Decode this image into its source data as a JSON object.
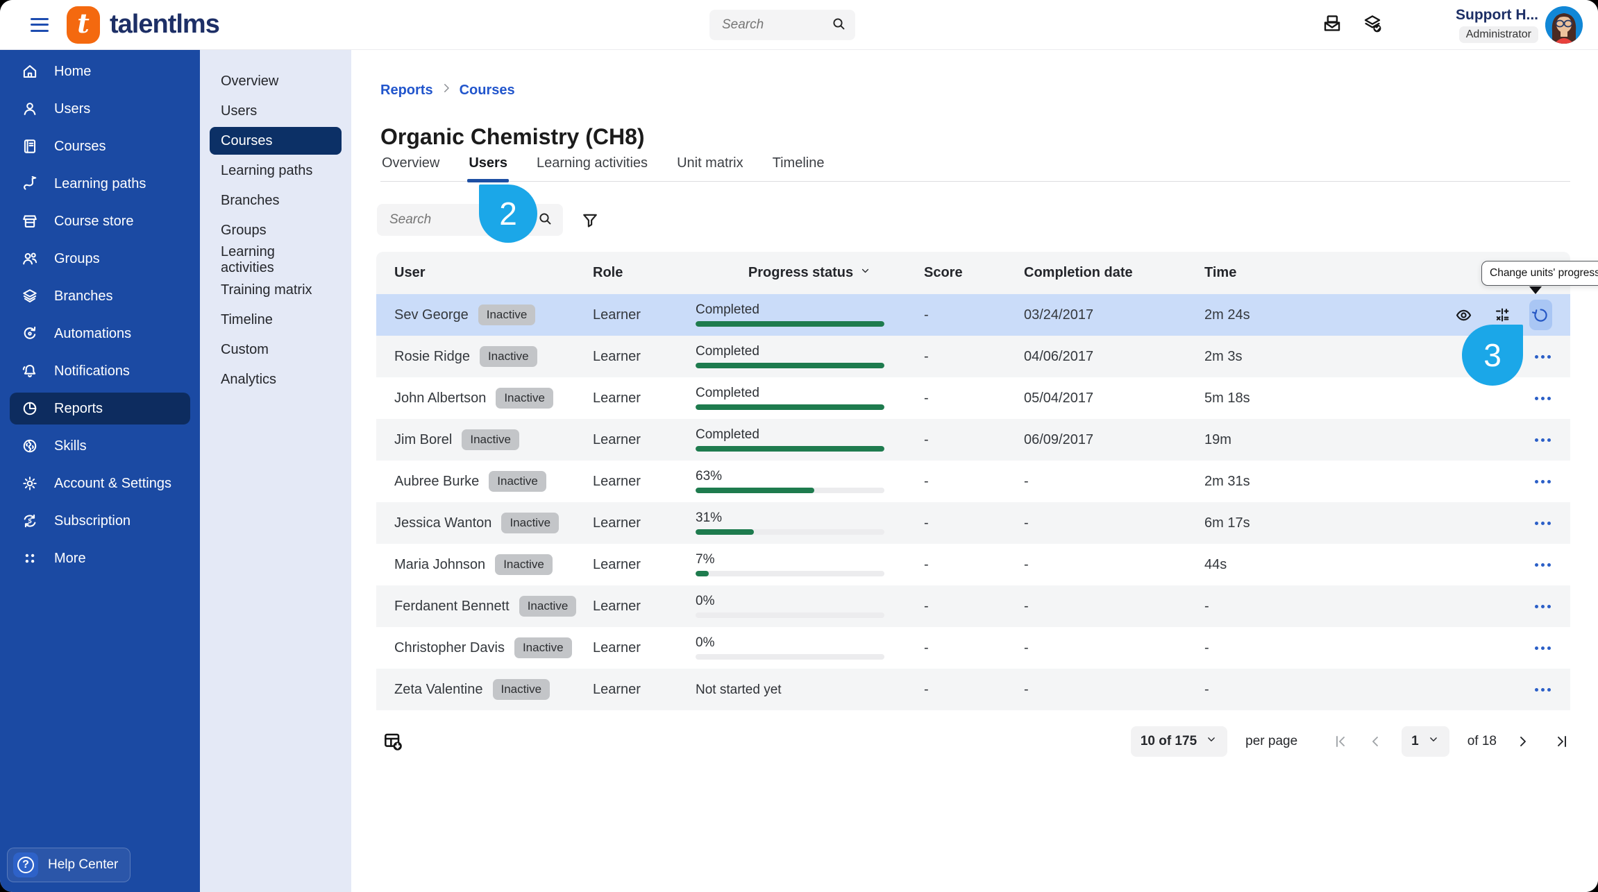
{
  "topbar": {
    "brand": "talentlms",
    "search_placeholder": "Search",
    "user_name": "Support H...",
    "user_role": "Administrator"
  },
  "sidebar": {
    "items": [
      {
        "label": "Home",
        "icon": "home",
        "active": false
      },
      {
        "label": "Users",
        "icon": "user",
        "active": false
      },
      {
        "label": "Courses",
        "icon": "book",
        "active": false
      },
      {
        "label": "Learning paths",
        "icon": "path",
        "active": false
      },
      {
        "label": "Course store",
        "icon": "store",
        "active": false
      },
      {
        "label": "Groups",
        "icon": "group",
        "active": false
      },
      {
        "label": "Branches",
        "icon": "layers",
        "active": false
      },
      {
        "label": "Automations",
        "icon": "automation",
        "active": false
      },
      {
        "label": "Notifications",
        "icon": "bell",
        "active": false
      },
      {
        "label": "Reports",
        "icon": "pie",
        "active": true
      },
      {
        "label": "Skills",
        "icon": "brain",
        "active": false
      },
      {
        "label": "Account & Settings",
        "icon": "gear",
        "active": false
      },
      {
        "label": "Subscription",
        "icon": "subscription",
        "active": false
      },
      {
        "label": "More",
        "icon": "dots-grid",
        "active": false
      }
    ],
    "help_label": "Help Center"
  },
  "subnav": {
    "items": [
      {
        "label": "Overview",
        "active": false
      },
      {
        "label": "Users",
        "active": false
      },
      {
        "label": "Courses",
        "active": true
      },
      {
        "label": "Learning paths",
        "active": false
      },
      {
        "label": "Branches",
        "active": false
      },
      {
        "label": "Groups",
        "active": false
      },
      {
        "label": "Learning activities",
        "active": false
      },
      {
        "label": "Training matrix",
        "active": false
      },
      {
        "label": "Timeline",
        "active": false
      },
      {
        "label": "Custom",
        "active": false
      },
      {
        "label": "Analytics",
        "active": false
      }
    ]
  },
  "main": {
    "breadcrumb": [
      "Reports",
      "Courses"
    ],
    "title": "Organic Chemistry (CH8)",
    "tabs": [
      {
        "label": "Overview",
        "active": false
      },
      {
        "label": "Users",
        "active": true
      },
      {
        "label": "Learning activities",
        "active": false
      },
      {
        "label": "Unit matrix",
        "active": false
      },
      {
        "label": "Timeline",
        "active": false
      }
    ],
    "search_placeholder": "Search",
    "table": {
      "columns": [
        "User",
        "Role",
        "Progress status",
        "Score",
        "Completion date",
        "Time"
      ],
      "rows": [
        {
          "user": "Sev George",
          "badge": "Inactive",
          "role": "Learner",
          "progress_label": "Completed",
          "progress_pct": 100,
          "show_bar": true,
          "score": "-",
          "completion": "03/24/2017",
          "time": "2m 24s",
          "selected": true
        },
        {
          "user": "Rosie Ridge",
          "badge": "Inactive",
          "role": "Learner",
          "progress_label": "Completed",
          "progress_pct": 100,
          "show_bar": true,
          "score": "-",
          "completion": "04/06/2017",
          "time": "2m 3s",
          "selected": false
        },
        {
          "user": "John Albertson",
          "badge": "Inactive",
          "role": "Learner",
          "progress_label": "Completed",
          "progress_pct": 100,
          "show_bar": true,
          "score": "-",
          "completion": "05/04/2017",
          "time": "5m 18s",
          "selected": false
        },
        {
          "user": "Jim Borel",
          "badge": "Inactive",
          "role": "Learner",
          "progress_label": "Completed",
          "progress_pct": 100,
          "show_bar": true,
          "score": "-",
          "completion": "06/09/2017",
          "time": "19m",
          "selected": false
        },
        {
          "user": "Aubree Burke",
          "badge": "Inactive",
          "role": "Learner",
          "progress_label": "63%",
          "progress_pct": 63,
          "show_bar": true,
          "score": "-",
          "completion": "-",
          "time": "2m 31s",
          "selected": false
        },
        {
          "user": "Jessica Wanton",
          "badge": "Inactive",
          "role": "Learner",
          "progress_label": "31%",
          "progress_pct": 31,
          "show_bar": true,
          "score": "-",
          "completion": "-",
          "time": "6m 17s",
          "selected": false
        },
        {
          "user": "Maria Johnson",
          "badge": "Inactive",
          "role": "Learner",
          "progress_label": "7%",
          "progress_pct": 7,
          "show_bar": true,
          "score": "-",
          "completion": "-",
          "time": "44s",
          "selected": false
        },
        {
          "user": "Ferdanent Bennett",
          "badge": "Inactive",
          "role": "Learner",
          "progress_label": "0%",
          "progress_pct": 0,
          "show_bar": true,
          "score": "-",
          "completion": "-",
          "time": "-",
          "selected": false
        },
        {
          "user": "Christopher Davis",
          "badge": "Inactive",
          "role": "Learner",
          "progress_label": "0%",
          "progress_pct": 0,
          "show_bar": true,
          "score": "-",
          "completion": "-",
          "time": "-",
          "selected": false
        },
        {
          "user": "Zeta Valentine",
          "badge": "Inactive",
          "role": "Learner",
          "progress_label": "Not started yet",
          "progress_pct": 0,
          "show_bar": false,
          "score": "-",
          "completion": "-",
          "time": "-",
          "selected": false
        }
      ]
    },
    "row_tooltip": "Change units' progress",
    "pagination": {
      "page_size": "10 of 175",
      "per_page_label": "per page",
      "page": "1",
      "total_label": "of 18"
    },
    "callouts": {
      "step2": "2",
      "step3": "3"
    }
  },
  "colors": {
    "sidebar_blue": "#1b4aa3",
    "active_navy": "#0d2c5f",
    "brand_orange": "#f4690f",
    "progress_green": "#1e7b4e",
    "selected_row": "#cadcf9",
    "callout_blue": "#1ba7e8",
    "link_blue": "#2155cc"
  }
}
